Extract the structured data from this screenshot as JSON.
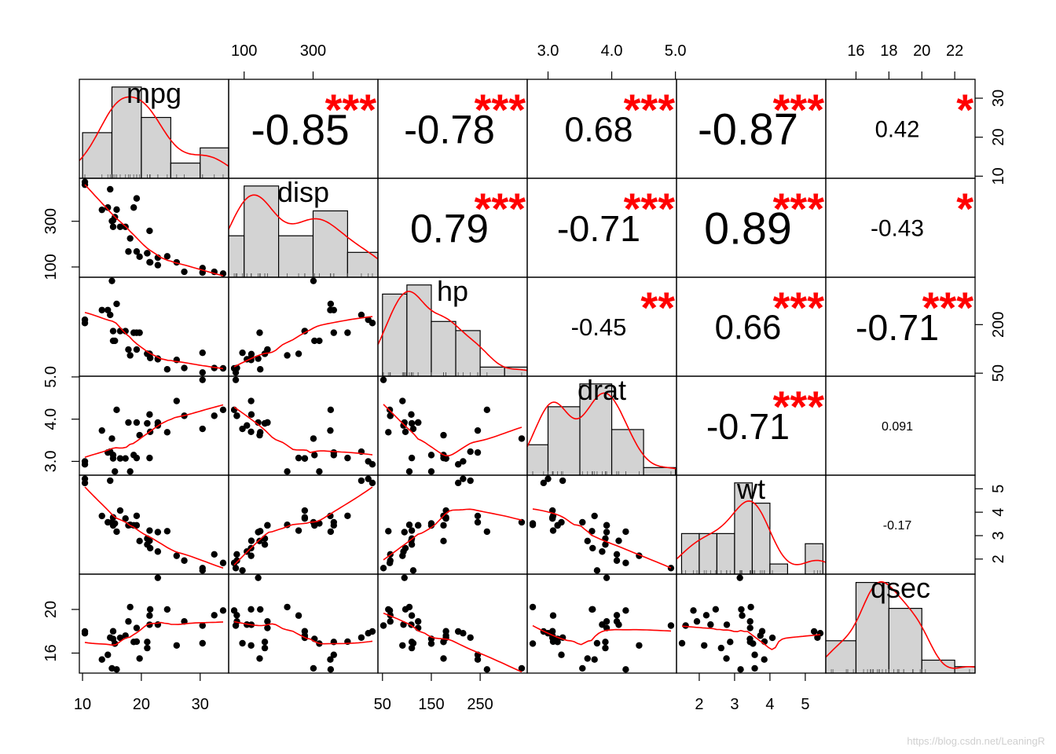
{
  "chart_data": {
    "type": "scatter-matrix",
    "variables": [
      "mpg",
      "disp",
      "hp",
      "drat",
      "wt",
      "qsec"
    ],
    "axes": {
      "mpg": {
        "range": [
          10.4,
          33.9
        ],
        "ticks": [
          10,
          20,
          30
        ],
        "tick_labels": [
          "10",
          "20",
          "30"
        ]
      },
      "disp": {
        "range": [
          71.1,
          472
        ],
        "ticks": [
          100,
          300
        ],
        "tick_labels": [
          "100",
          "300"
        ]
      },
      "hp": {
        "range": [
          52,
          335
        ],
        "ticks": [
          50,
          150,
          250
        ],
        "tick_labels": [
          "50",
          "150",
          "250"
        ],
        "right_ticks": [
          50,
          200
        ],
        "right_tick_labels": [
          "50",
          "200"
        ]
      },
      "drat": {
        "range": [
          2.76,
          4.93
        ],
        "ticks": [
          3.0,
          4.0,
          5.0
        ],
        "tick_labels": [
          "3.0",
          "4.0",
          "5.0"
        ]
      },
      "wt": {
        "range": [
          1.513,
          5.424
        ],
        "ticks": [
          2,
          3,
          4,
          5
        ],
        "tick_labels": [
          "2",
          "3",
          "4",
          "5"
        ]
      },
      "qsec": {
        "range": [
          14.5,
          22.9
        ],
        "ticks": [
          16,
          18,
          20,
          22
        ],
        "tick_labels": [
          "16",
          "18",
          "20",
          "22"
        ],
        "left_ticks": [
          16,
          20
        ],
        "left_tick_labels": [
          "16",
          "20"
        ]
      }
    },
    "correlations": [
      {
        "row": "mpg",
        "col": "disp",
        "r": "-0.85",
        "stars": "***"
      },
      {
        "row": "mpg",
        "col": "hp",
        "r": "-0.78",
        "stars": "***"
      },
      {
        "row": "mpg",
        "col": "drat",
        "r": "0.68",
        "stars": "***"
      },
      {
        "row": "mpg",
        "col": "wt",
        "r": "-0.87",
        "stars": "***"
      },
      {
        "row": "mpg",
        "col": "qsec",
        "r": "0.42",
        "stars": "*"
      },
      {
        "row": "disp",
        "col": "hp",
        "r": "0.79",
        "stars": "***"
      },
      {
        "row": "disp",
        "col": "drat",
        "r": "-0.71",
        "stars": "***"
      },
      {
        "row": "disp",
        "col": "wt",
        "r": "0.89",
        "stars": "***"
      },
      {
        "row": "disp",
        "col": "qsec",
        "r": "-0.43",
        "stars": "*"
      },
      {
        "row": "hp",
        "col": "drat",
        "r": "-0.45",
        "stars": "**"
      },
      {
        "row": "hp",
        "col": "wt",
        "r": "0.66",
        "stars": "***"
      },
      {
        "row": "hp",
        "col": "qsec",
        "r": "-0.71",
        "stars": "***"
      },
      {
        "row": "drat",
        "col": "wt",
        "r": "-0.71",
        "stars": "***"
      },
      {
        "row": "drat",
        "col": "qsec",
        "r": "0.091",
        "stars": ""
      },
      {
        "row": "wt",
        "col": "qsec",
        "r": "-0.17",
        "stars": ""
      }
    ],
    "observations": {
      "mpg": [
        21.0,
        21.0,
        22.8,
        21.4,
        18.7,
        18.1,
        14.3,
        24.4,
        22.8,
        19.2,
        17.8,
        16.4,
        17.3,
        15.2,
        10.4,
        10.4,
        14.7,
        32.4,
        30.4,
        33.9,
        21.5,
        15.5,
        15.2,
        13.3,
        19.2,
        27.3,
        26.0,
        30.4,
        15.8,
        19.7,
        15.0,
        21.4
      ],
      "disp": [
        160,
        160,
        108,
        258,
        360,
        225,
        360,
        146.7,
        140.8,
        167.6,
        167.6,
        275.8,
        275.8,
        275.8,
        472,
        460,
        440,
        78.7,
        75.7,
        71.1,
        120.1,
        318,
        304,
        350,
        400,
        79,
        120.3,
        95.1,
        351,
        145,
        301,
        121
      ],
      "hp": [
        110,
        110,
        93,
        110,
        175,
        105,
        245,
        62,
        95,
        123,
        123,
        180,
        180,
        180,
        205,
        215,
        230,
        66,
        52,
        65,
        97,
        150,
        150,
        245,
        175,
        66,
        91,
        113,
        264,
        175,
        335,
        109
      ],
      "drat": [
        3.9,
        3.9,
        3.85,
        3.08,
        3.15,
        2.76,
        3.21,
        3.69,
        3.92,
        3.92,
        3.92,
        3.07,
        3.07,
        3.07,
        2.93,
        3.0,
        3.23,
        4.08,
        4.93,
        4.22,
        3.7,
        2.76,
        3.15,
        3.73,
        3.08,
        4.08,
        4.43,
        3.77,
        4.22,
        3.62,
        3.54,
        4.11
      ],
      "wt": [
        2.62,
        2.875,
        2.32,
        3.215,
        3.44,
        3.46,
        3.57,
        3.19,
        3.15,
        3.44,
        3.44,
        4.07,
        3.73,
        3.78,
        5.25,
        5.424,
        5.345,
        2.2,
        1.615,
        1.835,
        2.465,
        3.52,
        3.435,
        3.84,
        3.845,
        1.935,
        2.14,
        1.513,
        3.17,
        2.77,
        3.57,
        2.78
      ],
      "qsec": [
        16.46,
        17.02,
        18.61,
        19.44,
        17.02,
        20.22,
        15.84,
        20.0,
        22.9,
        18.3,
        18.9,
        17.4,
        17.6,
        18.0,
        17.98,
        17.82,
        17.42,
        19.47,
        18.52,
        19.9,
        20.01,
        16.87,
        17.3,
        15.41,
        17.05,
        18.9,
        16.7,
        16.9,
        14.5,
        15.5,
        14.6,
        18.6
      ]
    },
    "diagonal": "histogram",
    "lower_panels": "scatter",
    "upper_panels": "correlation",
    "colors": {
      "hist_fill": "#d3d3d3",
      "smooth": "#ff0000",
      "stars": "#ff0000",
      "points": "#000000",
      "text": "#000000"
    }
  },
  "watermark": "https://blog.csdn.net/LeaningR"
}
